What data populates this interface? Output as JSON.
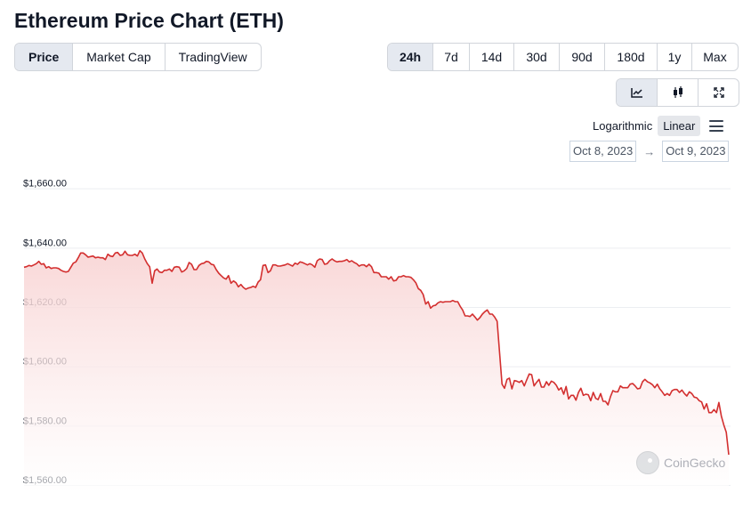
{
  "page": {
    "title": "Ethereum Price Chart (ETH)"
  },
  "view_tabs": [
    {
      "label": "Price",
      "active": true
    },
    {
      "label": "Market Cap",
      "active": false
    },
    {
      "label": "TradingView",
      "active": false
    }
  ],
  "range_tabs": [
    {
      "label": "24h",
      "active": true
    },
    {
      "label": "7d",
      "active": false
    },
    {
      "label": "14d",
      "active": false
    },
    {
      "label": "30d",
      "active": false
    },
    {
      "label": "90d",
      "active": false
    },
    {
      "label": "180d",
      "active": false
    },
    {
      "label": "1y",
      "active": false
    },
    {
      "label": "Max",
      "active": false
    }
  ],
  "chart_type_tabs": [
    {
      "icon": "line-chart-icon",
      "active": true
    },
    {
      "icon": "candlestick-icon",
      "active": false
    },
    {
      "icon": "fullscreen-icon",
      "active": false
    }
  ],
  "scale": {
    "log_label": "Logarithmic",
    "linear_label": "Linear",
    "active": "Linear"
  },
  "date_range": {
    "from": "Oct 8, 2023",
    "arrow": "→",
    "to": "Oct 9, 2023"
  },
  "watermark": {
    "text": "CoinGecko"
  },
  "colors": {
    "line": "#d32f2f",
    "fill_top": "#f8d3d3",
    "fill_bottom": "#ffffff",
    "active_tab": "#e5e9f0"
  },
  "chart_data": {
    "type": "area",
    "title": "",
    "xlabel": "",
    "ylabel": "",
    "ylim": [
      1557,
      1665
    ],
    "yticks": [
      1660,
      1640,
      1620,
      1600,
      1580,
      1560
    ],
    "ytick_labels": [
      "$1,660.00",
      "$1,640.00",
      "$1,620.00",
      "$1,600.00",
      "$1,580.00",
      "$1,560.00"
    ],
    "grid": true,
    "legend": "none",
    "series": [
      {
        "values": [
          1633.4,
          1633.6,
          1634,
          1633.8,
          1634.2,
          1634.6,
          1635.4,
          1634.4,
          1634.6,
          1633.2,
          1633.6,
          1633,
          1633.2,
          1633.2,
          1633,
          1632.4,
          1632,
          1631.8,
          1632,
          1633.4,
          1634.8,
          1635.2,
          1636.6,
          1638.2,
          1638.2,
          1637.6,
          1636.8,
          1637,
          1637.2,
          1636.6,
          1636.8,
          1636.6,
          1636.6,
          1636,
          1637.8,
          1637.2,
          1637,
          1638.2,
          1638.4,
          1637.4,
          1637.6,
          1638.8,
          1637.6,
          1637.4,
          1637.4,
          1637.8,
          1637.2,
          1639,
          1638.2,
          1636.2,
          1634.6,
          1633.6,
          1628,
          1632.2,
          1632.8,
          1631.8,
          1631.6,
          1632.4,
          1632.4,
          1632.8,
          1632,
          1633.4,
          1633.6,
          1633.4,
          1631.8,
          1632.2,
          1633,
          1635,
          1634.4,
          1632.6,
          1632.6,
          1634,
          1634.6,
          1634.8,
          1635.4,
          1635.2,
          1634.4,
          1634.2,
          1632.6,
          1631.4,
          1630.6,
          1629.8,
          1629.4,
          1630.6,
          1628,
          1628.8,
          1628.2,
          1626.8,
          1627.6,
          1626.6,
          1626,
          1626.4,
          1626.6,
          1627,
          1626.6,
          1628.4,
          1629.2,
          1634,
          1634.2,
          1631.6,
          1632.2,
          1634.2,
          1634.2,
          1633.8,
          1633.8,
          1634,
          1634.2,
          1634.6,
          1634.2,
          1633.8,
          1634.8,
          1634.4,
          1635.2,
          1635,
          1634.6,
          1634.2,
          1634.6,
          1634.2,
          1633.4,
          1635.6,
          1636.2,
          1636,
          1634.4,
          1634.6,
          1635.6,
          1636.2,
          1635.6,
          1635.2,
          1635.4,
          1635.4,
          1635.6,
          1636,
          1635.2,
          1635.6,
          1635,
          1634.6,
          1633.8,
          1634.2,
          1634.2,
          1633.6,
          1634.4,
          1633.6,
          1631.6,
          1631.6,
          1631.4,
          1630.2,
          1630.2,
          1630.2,
          1629.4,
          1630.2,
          1628.8,
          1629,
          1630.2,
          1630.2,
          1630.6,
          1630.2,
          1630.2,
          1630,
          1629.2,
          1628.2,
          1626.2,
          1625.6,
          1624.2,
          1621,
          1621.8,
          1619.6,
          1620.4,
          1620.6,
          1621.4,
          1621.8,
          1621.6,
          1621.8,
          1621.8,
          1621.8,
          1622.2,
          1621.8,
          1621.8,
          1620.2,
          1619,
          1617,
          1617,
          1616.8,
          1617.6,
          1616.6,
          1615.6,
          1616.4,
          1617.6,
          1618.4,
          1619,
          1617.6,
          1617.6,
          1616.6,
          1615.2,
          1604.4,
          1594,
          1592.6,
          1595.6,
          1596,
          1592.4,
          1595.2,
          1595,
          1594.6,
          1595.2,
          1593.4,
          1595.4,
          1597.4,
          1597.2,
          1593.4,
          1594.6,
          1595.6,
          1593,
          1593,
          1594.8,
          1593.6,
          1595,
          1594.6,
          1593.6,
          1592,
          1592.8,
          1590.6,
          1593.2,
          1589,
          1590.2,
          1590.2,
          1588.6,
          1591.2,
          1592.6,
          1590.2,
          1590.6,
          1590.4,
          1588.4,
          1591.2,
          1589.2,
          1588.8,
          1590.8,
          1588.2,
          1588.2,
          1587,
          1589.8,
          1591.8,
          1591.4,
          1591.4,
          1593.4,
          1592.8,
          1592.8,
          1592.8,
          1594,
          1594.2,
          1593.4,
          1592.4,
          1592.6,
          1594.8,
          1595.6,
          1594.8,
          1594.4,
          1593.8,
          1592.8,
          1594,
          1592.4,
          1591.4,
          1590.2,
          1590.8,
          1590.2,
          1591.8,
          1592.2,
          1592.2,
          1591.2,
          1592,
          1590.8,
          1590,
          1591.4,
          1590.8,
          1589.6,
          1589.4,
          1588.4,
          1588,
          1585.6,
          1587.4,
          1584.4,
          1584.4,
          1585.4,
          1584.4,
          1587.8,
          1583.2,
          1580.2,
          1577.8,
          1570.2
        ]
      }
    ]
  }
}
